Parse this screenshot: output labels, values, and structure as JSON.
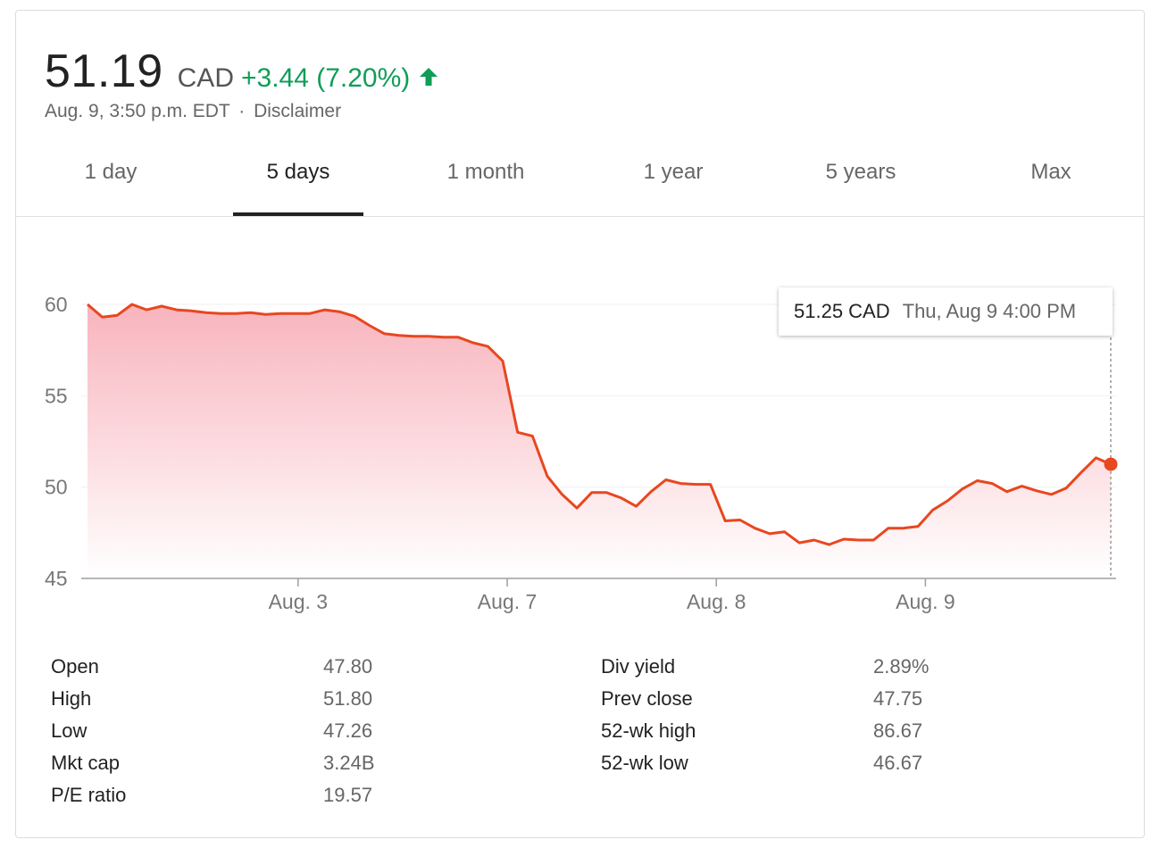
{
  "header": {
    "price": "51.19",
    "currency": "CAD",
    "change": "+3.44 (7.20%)",
    "timestamp": "Aug. 9, 3:50 p.m. EDT",
    "separator": "·",
    "disclaimer": "Disclaimer"
  },
  "colors": {
    "up": "#0f9d58",
    "line": "#e8471f",
    "fill_top": "#f8b4bd",
    "active_tab": "#222222"
  },
  "tabs": [
    {
      "label": "1 day"
    },
    {
      "label": "5 days",
      "active": true
    },
    {
      "label": "1 month"
    },
    {
      "label": "1 year"
    },
    {
      "label": "5 years"
    },
    {
      "label": "Max"
    }
  ],
  "tooltip": {
    "price": "51.25 CAD",
    "date": "Thu, Aug 9 4:00 PM"
  },
  "chart_data": {
    "type": "area",
    "xlabel": "",
    "ylabel": "",
    "ylim": [
      45,
      60
    ],
    "yticks": [
      "60",
      "55",
      "50",
      "45"
    ],
    "xticks": [
      "Aug. 3",
      "Aug. 7",
      "Aug. 8",
      "Aug. 9"
    ],
    "grid": true,
    "series": [
      {
        "values": [
          60.0,
          59.3,
          59.4,
          60.0,
          59.7,
          59.9,
          59.7,
          59.65,
          59.55,
          59.5,
          59.5,
          59.55,
          59.45,
          59.5,
          59.5,
          59.5,
          59.7,
          59.6,
          59.35,
          58.85,
          58.4,
          58.3,
          58.25,
          58.25,
          58.2,
          58.2,
          57.9,
          57.7,
          56.9,
          53.0,
          52.8,
          50.6,
          49.6,
          48.85,
          49.7,
          49.7,
          49.4,
          48.95,
          49.75,
          50.4,
          50.2,
          50.15,
          50.15,
          48.15,
          48.2,
          47.75,
          47.45,
          47.55,
          46.95,
          47.1,
          46.85,
          47.15,
          47.1,
          47.1,
          47.75,
          47.75,
          47.85,
          48.75,
          49.25,
          49.9,
          50.35,
          50.2,
          49.75,
          50.05,
          49.8,
          49.6,
          49.95,
          50.8,
          51.6,
          51.25
        ],
        "tick_index": [
          14.2,
          28.3,
          42.4,
          56.5
        ]
      }
    ],
    "last_point": 51.25
  },
  "stats": {
    "left": [
      {
        "label": "Open",
        "value": "47.80"
      },
      {
        "label": "High",
        "value": "51.80"
      },
      {
        "label": "Low",
        "value": "47.26"
      },
      {
        "label": "Mkt cap",
        "value": "3.24B"
      },
      {
        "label": "P/E ratio",
        "value": "19.57"
      }
    ],
    "right": [
      {
        "label": "Div yield",
        "value": "2.89%"
      },
      {
        "label": "Prev close",
        "value": "47.75"
      },
      {
        "label": "52-wk high",
        "value": "86.67"
      },
      {
        "label": "52-wk low",
        "value": "46.67"
      }
    ]
  }
}
